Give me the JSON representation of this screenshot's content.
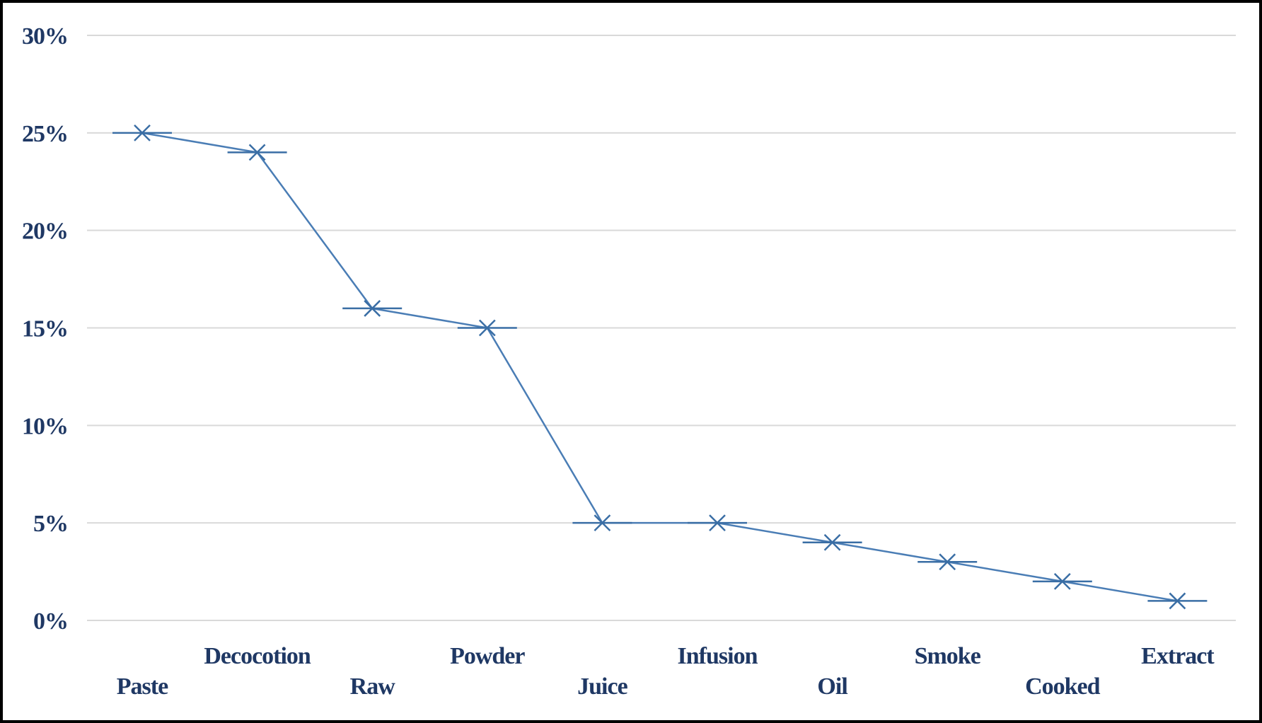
{
  "chart_data": {
    "type": "line",
    "title": "",
    "xlabel": "",
    "ylabel": "",
    "categories": [
      "Paste",
      "Decocotion",
      "Raw",
      "Powder",
      "Juice",
      "Infusion",
      "Oil",
      "Smoke",
      "Cooked",
      "Extract"
    ],
    "series": [
      {
        "values": [
          25,
          24,
          16,
          15,
          5,
          5,
          4,
          3,
          2,
          1
        ]
      }
    ],
    "ylim": [
      0,
      30
    ],
    "y_ticks": [
      0,
      5,
      10,
      15,
      20,
      25,
      30
    ],
    "y_tick_labels": [
      "0%",
      "5%",
      "10%",
      "15%",
      "20%",
      "25%",
      "30%"
    ],
    "grid": true,
    "marker": "x-with-horizontal-bar",
    "colors": {
      "line": "#4a7db5",
      "marker": "#3a6ea5",
      "grid": "#d9d9d9",
      "text": "#1f3864",
      "frame": "#000000"
    }
  }
}
